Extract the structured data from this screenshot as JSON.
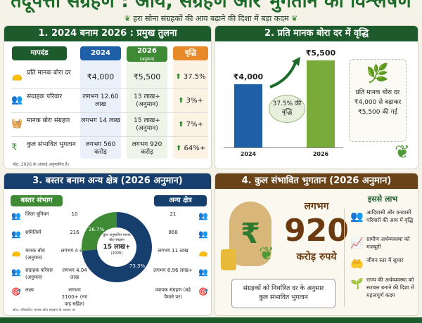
{
  "header": {
    "title": "तेंदूपत्ता संग्रहण : आय, संग्रहण और भुगतान का विश्लेषण",
    "subtitle": "हरा सोना संग्रहकों की आय बढ़ाने की दिशा में बड़ा कदम"
  },
  "colors": {
    "green_dark": "#1d5a2c",
    "blue": "#1f5fa8",
    "green": "#3f8b35",
    "orange": "#e98a2a",
    "navy": "#173f6e",
    "brown": "#6b4318"
  },
  "p1": {
    "title": "1. 2024 बनाम 2026 : प्रमुख तुलना",
    "cols": [
      "मापदंड",
      "2024",
      "2026",
      "(अनुमान)",
      "वृद्धि"
    ],
    "rows": [
      {
        "icon": "sack-icon",
        "label": "प्रति मानक बोरा दर",
        "v2024": "₹4,000",
        "v2026": "₹5,500",
        "growth": "37.5%"
      },
      {
        "icon": "people-icon",
        "label": "संग्राहक परिवार",
        "v2024": "लगभग 12.60 लाख",
        "v2026": "13 लाख+ (अनुमान)",
        "growth": "3%+"
      },
      {
        "icon": "basket-icon",
        "label": "मानक बोरा संग्रहण",
        "v2024": "लगभग 14 लाख",
        "v2026": "15 लाख+ (अनुमान)",
        "growth": "7%+"
      },
      {
        "icon": "rupee-icon",
        "label": "कुल संभावित भुगतान",
        "v2024": "लगभग 560 करोड़",
        "v2026": "लगभग 920 करोड़",
        "growth": "64%+"
      }
    ],
    "note": "नोट: 2026 के आंकड़े अनुमानित हैं।"
  },
  "p2": {
    "title": "2. प्रति मानक बोरा दर में वृद्धि",
    "chart_data": {
      "type": "bar",
      "categories": [
        "2024",
        "2026"
      ],
      "values": [
        4000,
        5500
      ],
      "value_labels": [
        "₹4,000",
        "₹5,500"
      ],
      "annotation": "37.5% की वृद्धि"
    },
    "box": "प्रति मानक बोरा दर ₹4,000 से बढ़ाकर ₹5,500 की गई"
  },
  "p3": {
    "title": "3. बस्तर बनाम अन्य क्षेत्र (2026 अनुमान)",
    "left_head": "बस्तर संभाग",
    "right_head": "अन्य क्षेत्र",
    "rows": [
      {
        "label": "जिला यूनियन",
        "left": "10",
        "right": "21"
      },
      {
        "label": "समितियाँ",
        "left": "216",
        "right": "868"
      },
      {
        "label": "मानक बोरा (अनुमान)",
        "left": "लगभग 4 लाख",
        "right": "लगभग 11 लाख"
      },
      {
        "label": "संग्राहक परिवार (अनुमान)",
        "left": "लगभग 4.04 लाख",
        "right": "लगभग 8.96 लाख+"
      },
      {
        "label": "लक्ष्य",
        "left": "लगभग 2100+ (नए फड़ सहित)",
        "right": "व्यापक संग्रहण (बड़े पैमाने पर)"
      }
    ],
    "chart_data": {
      "type": "pie",
      "series": [
        {
          "name": "बस्तर संभाग",
          "value": 26.7,
          "label": "26.7%"
        },
        {
          "name": "अन्य क्षेत्र",
          "value": 73.3,
          "label": "73.3%"
        }
      ],
      "center": [
        "कुल अनुमानित मानक बोरा संग्रहण",
        "15 लाख+",
        "(2026)"
      ]
    },
    "note": "स्रोत: परिकलित मानक बोरा संग्रहण के आधार पर"
  },
  "p4": {
    "title": "4. कुल संभावित भुगतान (2026 अनुमान)",
    "approx": "लगभग",
    "amount": "920",
    "unit": "करोड़ रुपये",
    "box": "संग्रहकों को निर्धारित दर के अनुसार कुल संभावित भुगतान",
    "benefits_title": "इससे लाभ",
    "benefits": [
      "आदिवासी और वनवासी परिवारों की आय में वृद्धि",
      "ग्रामीण अर्थव्यवस्था को मजबूती",
      "जीवन स्तर में सुधार",
      "राज्य की अर्थव्यवस्था को सशक्त बनाने की दिशा में महत्वपूर्ण कदम"
    ]
  }
}
